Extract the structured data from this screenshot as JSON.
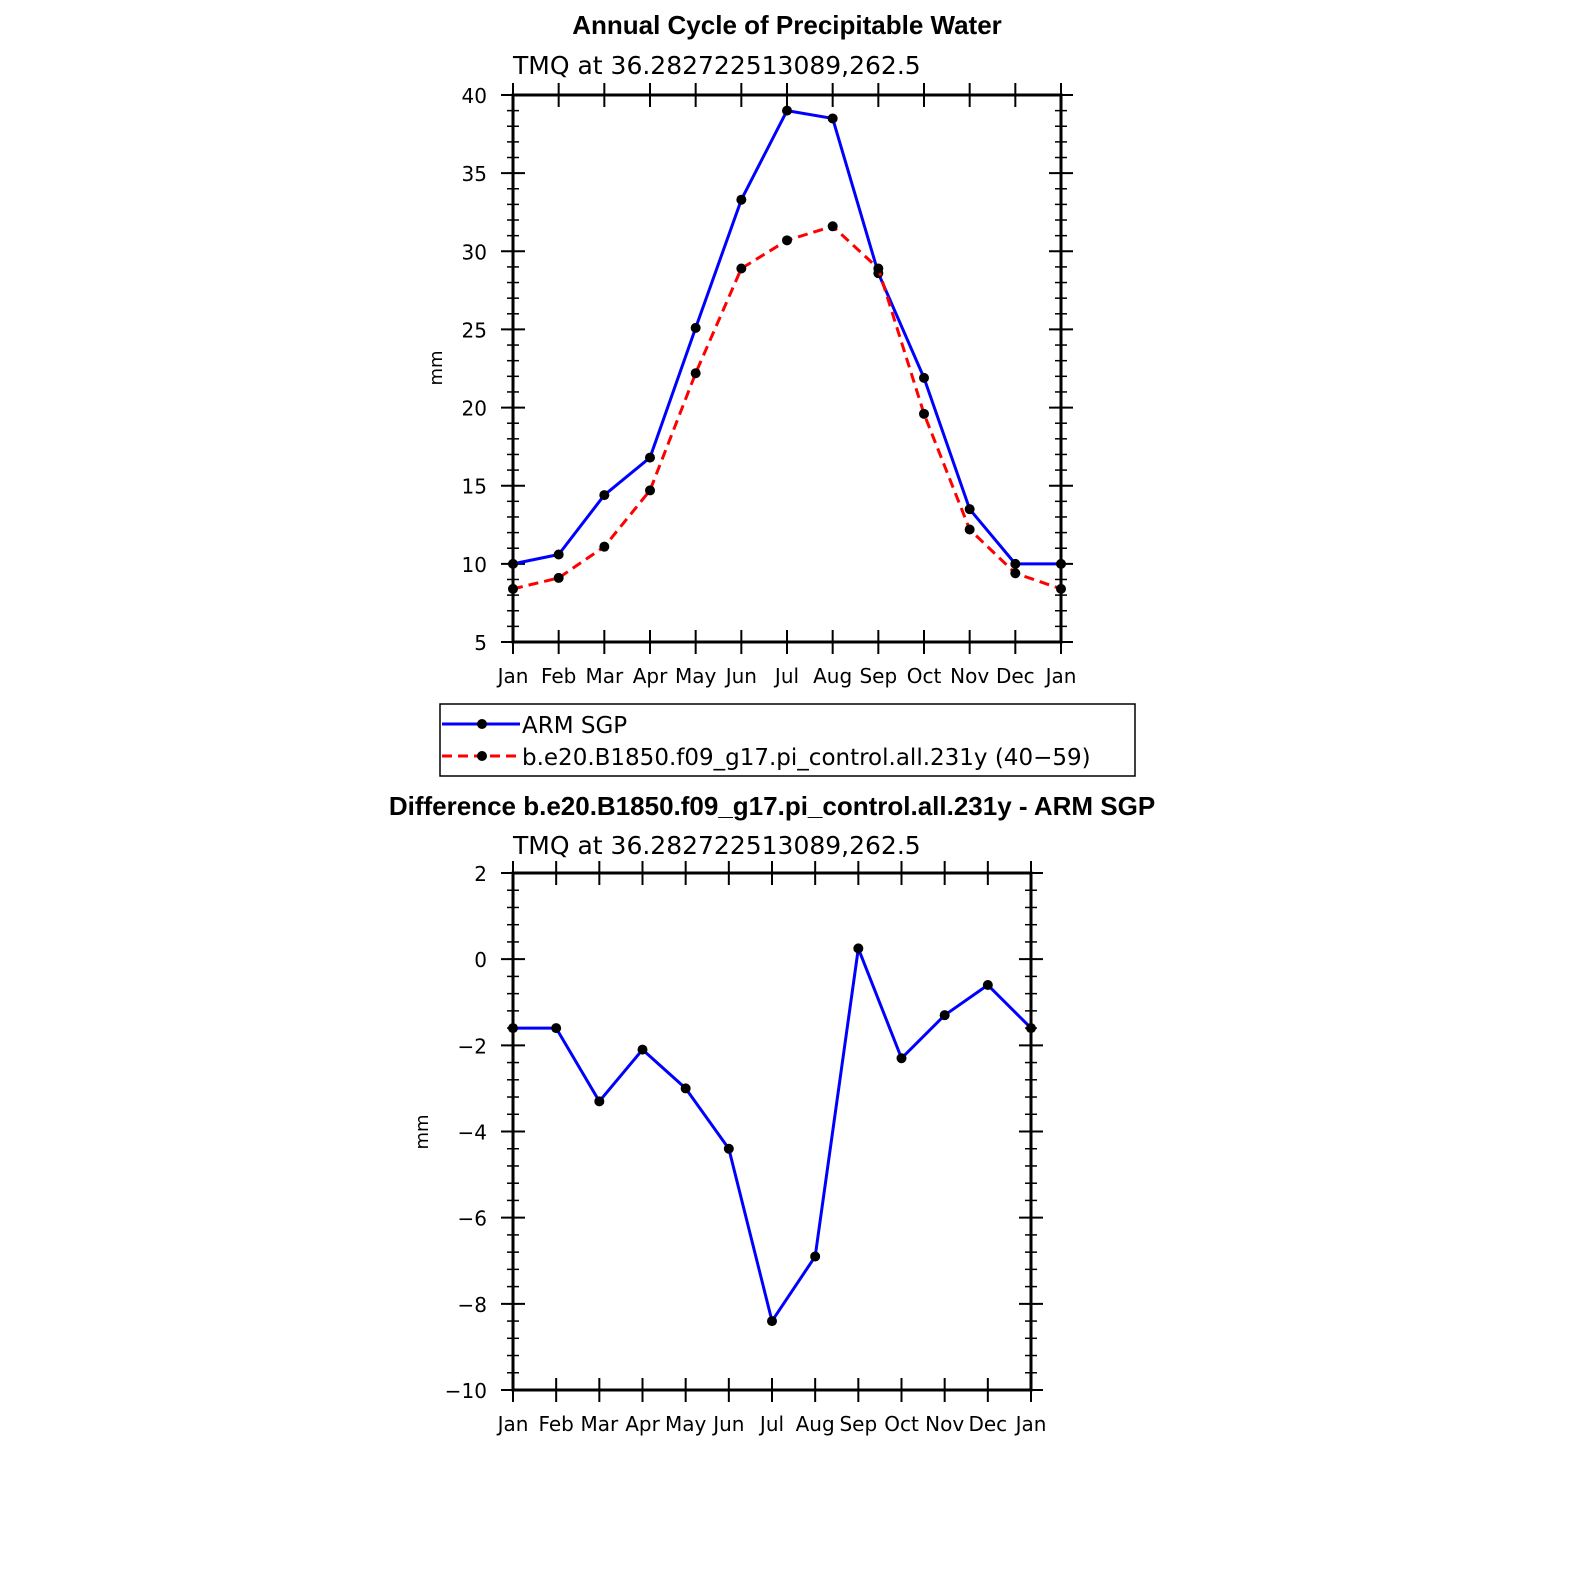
{
  "chart_data": [
    {
      "type": "line",
      "title": "Annual Cycle of Precipitable Water",
      "subtitle": "TMQ at 36.282722513089,262.5",
      "xlabel": "",
      "ylabel": "mm",
      "categories": [
        "Jan",
        "Feb",
        "Mar",
        "Apr",
        "May",
        "Jun",
        "Jul",
        "Aug",
        "Sep",
        "Oct",
        "Nov",
        "Dec",
        "Jan"
      ],
      "ylim": [
        5,
        40
      ],
      "yticks": [
        5,
        10,
        15,
        20,
        25,
        30,
        35,
        40
      ],
      "ytick_labels": [
        "5",
        "10",
        "15",
        "20",
        "25",
        "30",
        "35",
        "40"
      ],
      "legend_position": "below",
      "series": [
        {
          "name": "ARM SGP",
          "color": "#0000ff",
          "style": "solid",
          "values": [
            10.0,
            10.6,
            14.4,
            16.8,
            25.1,
            33.3,
            39.0,
            38.5,
            28.6,
            21.9,
            13.5,
            10.0,
            10.0
          ]
        },
        {
          "name": "b.e20.B1850.f09_g17.pi_control.all.231y (40−59)",
          "color": "#ff0000",
          "style": "dashed",
          "values": [
            8.4,
            9.1,
            11.1,
            14.7,
            22.2,
            28.9,
            30.7,
            31.6,
            28.9,
            19.6,
            12.2,
            9.4,
            8.4
          ]
        }
      ]
    },
    {
      "type": "line",
      "title": "Difference b.e20.B1850.f09_g17.pi_control.all.231y - ARM SGP",
      "subtitle": "TMQ at 36.282722513089,262.5",
      "xlabel": "",
      "ylabel": "mm",
      "categories": [
        "Jan",
        "Feb",
        "Mar",
        "Apr",
        "May",
        "Jun",
        "Jul",
        "Aug",
        "Sep",
        "Oct",
        "Nov",
        "Dec",
        "Jan"
      ],
      "ylim": [
        -10,
        2
      ],
      "yticks": [
        -10,
        -8,
        -6,
        -4,
        -2,
        0,
        2
      ],
      "ytick_labels": [
        "−10",
        "−8",
        "−6",
        "−4",
        "−2",
        "0",
        "2"
      ],
      "series": [
        {
          "name": "Difference",
          "color": "#0000ff",
          "style": "solid",
          "values": [
            -1.6,
            -1.6,
            -3.3,
            -2.1,
            -3.0,
            -4.4,
            -8.4,
            -6.9,
            0.25,
            -2.3,
            -1.3,
            -0.6,
            -1.6
          ]
        }
      ]
    }
  ]
}
